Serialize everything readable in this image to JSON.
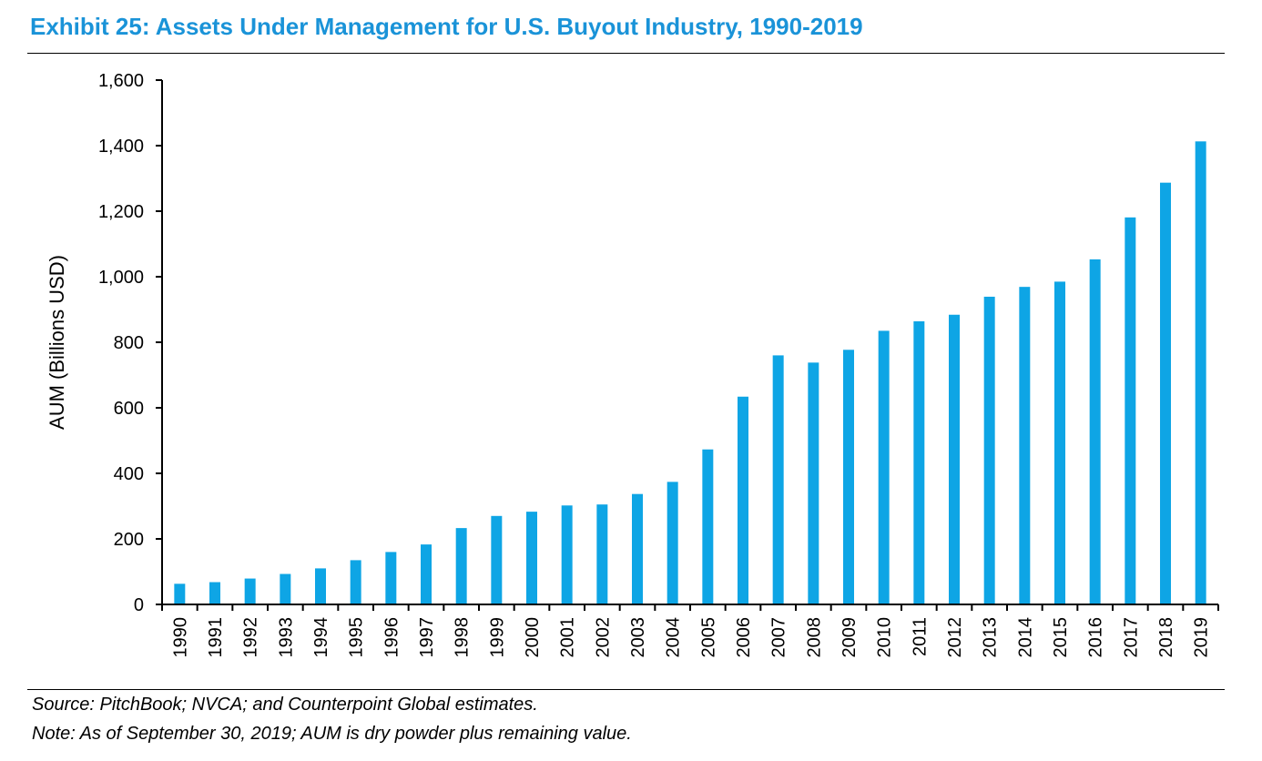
{
  "header": {
    "title": "Exhibit 25: Assets Under Management for U.S. Buyout Industry, 1990-2019"
  },
  "footer": {
    "source": "Source: PitchBook; NVCA; and Counterpoint Global estimates.",
    "note": "Note: As of September 30, 2019; AUM is dry powder plus remaining value."
  },
  "colors": {
    "title": "#1a93d8",
    "bar": "#0ea5e5",
    "axis": "#000000"
  },
  "chart_data": {
    "type": "bar",
    "title": "Exhibit 25: Assets Under Management for U.S. Buyout Industry, 1990-2019",
    "xlabel": "",
    "ylabel": "AUM (Billions USD)",
    "ylim": [
      0,
      1600
    ],
    "yticks": [
      0,
      200,
      400,
      600,
      800,
      1000,
      1200,
      1400,
      1600
    ],
    "ytick_labels": [
      "0",
      "200",
      "400",
      "600",
      "800",
      "1,000",
      "1,200",
      "1,400",
      "1,600"
    ],
    "grid": false,
    "categories": [
      "1990",
      "1991",
      "1992",
      "1993",
      "1994",
      "1995",
      "1996",
      "1997",
      "1998",
      "1999",
      "2000",
      "2001",
      "2002",
      "2003",
      "2004",
      "2005",
      "2006",
      "2007",
      "2008",
      "2009",
      "2010",
      "2011",
      "2012",
      "2013",
      "2014",
      "2015",
      "2016",
      "2017",
      "2018",
      "2019"
    ],
    "values": [
      63,
      68,
      79,
      93,
      110,
      135,
      160,
      183,
      233,
      270,
      283,
      302,
      305,
      337,
      374,
      473,
      634,
      760,
      738,
      777,
      835,
      864,
      884,
      939,
      969,
      985,
      1053,
      1181,
      1287,
      1413
    ]
  }
}
